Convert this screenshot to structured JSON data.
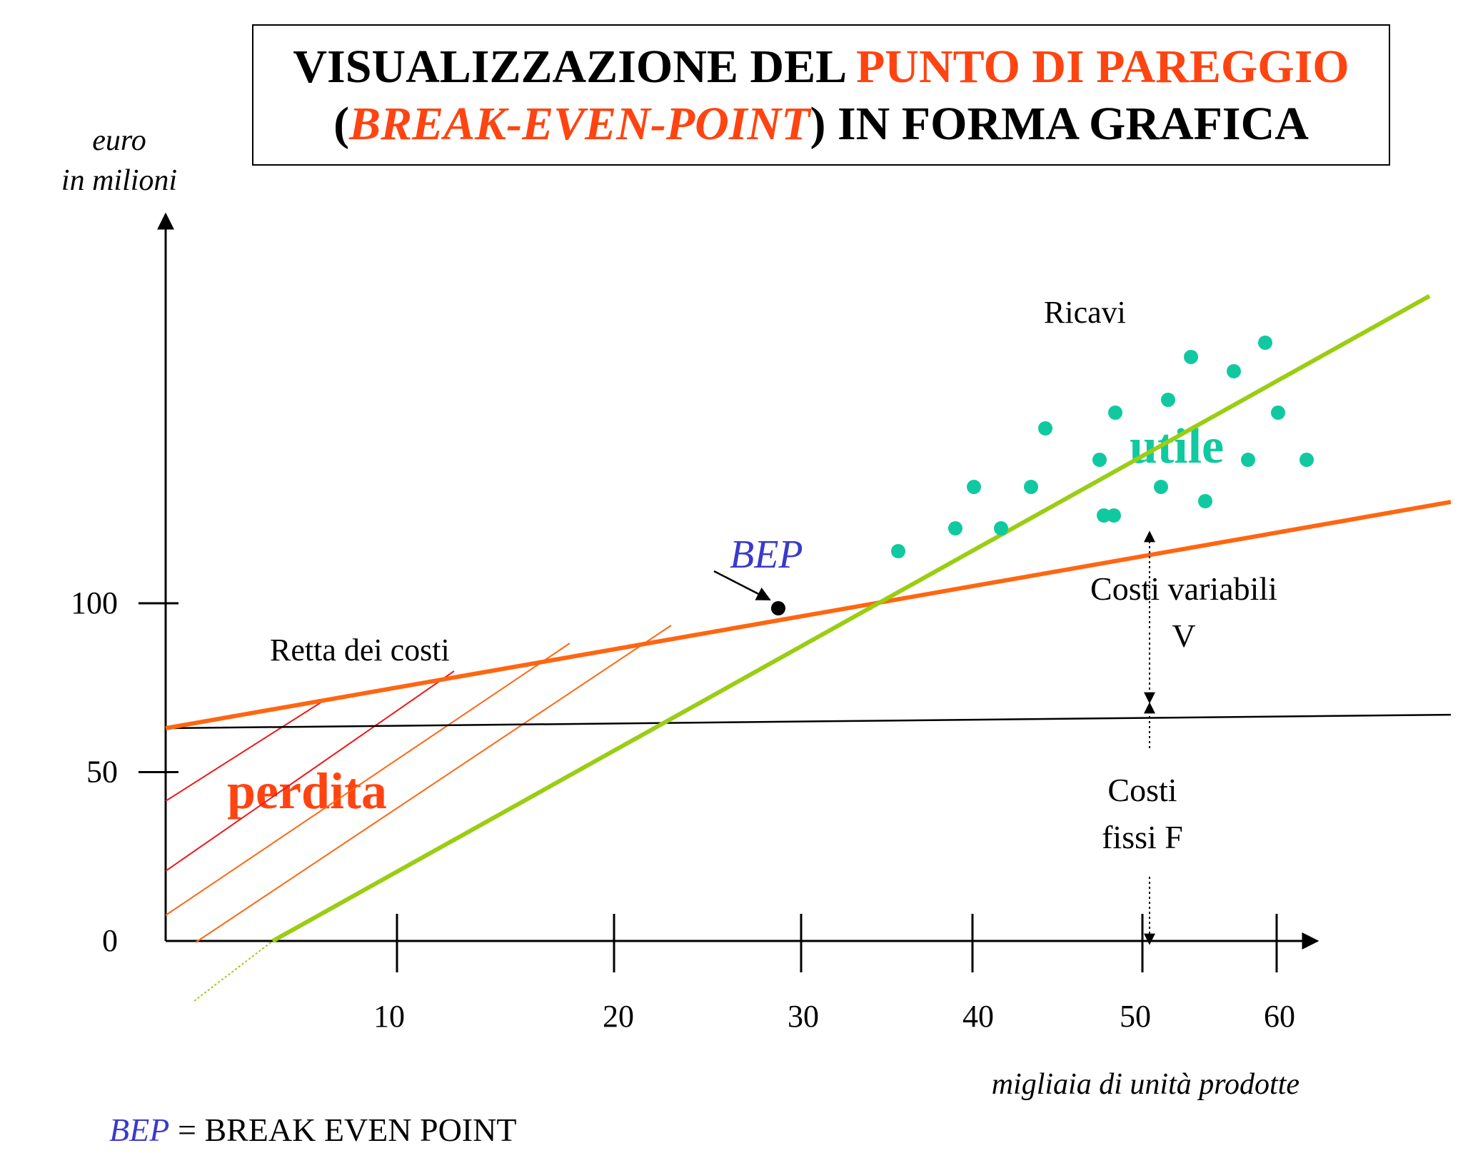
{
  "header": {
    "title_line1_black": "VISUALIZZAZIONE DEL ",
    "title_line1_red": "PUNTO DI PAREGGIO",
    "title_line2_open": "(",
    "title_line2_red_italic": "BREAK-EVEN-POINT",
    "title_line2_close": ") IN FORMA GRAFICA"
  },
  "footer": {
    "bep_abbr": "BEP",
    "bep_definition": " = BREAK EVEN POINT"
  },
  "colors": {
    "revenue": "#9acd13",
    "costs": "#ff6611",
    "profit_dots": "#11c9a0",
    "loss_text": "#ff4411",
    "bep_label": "#3a3acc",
    "hatch_red": "#ee1a1a",
    "hatch_orange": "#ff6611"
  },
  "chart_data": {
    "type": "line",
    "ylabel_line1": "euro",
    "ylabel_line2": "in milioni",
    "xlabel": "migliaia di unità prodotte",
    "y_ticks": [
      "100",
      "50",
      "0"
    ],
    "x_ticks": [
      "10",
      "20",
      "30",
      "40",
      "50",
      "60"
    ],
    "series": [
      {
        "name": "Ricavi",
        "x": [
          5,
          59
        ],
        "y": [
          0,
          191
        ]
      },
      {
        "name": "Retta dei costi",
        "x": [
          0,
          60
        ],
        "y": [
          63,
          130
        ]
      },
      {
        "name": "Costi fissi F",
        "x": [
          0,
          60
        ],
        "y": [
          63,
          67
        ]
      }
    ],
    "bep": {
      "label": "BEP",
      "x": 28,
      "y": 100
    },
    "annotations": {
      "costs_line_label": "Retta dei costi",
      "revenue_label": "Ricavi",
      "profit_label": "utile",
      "loss_label": "perdita",
      "variable_costs_label_line1": "Costi variabili",
      "variable_costs_label_line2": "V",
      "fixed_costs_label_line1": "Costi",
      "fixed_costs_label_line2": "fissi F"
    }
  }
}
